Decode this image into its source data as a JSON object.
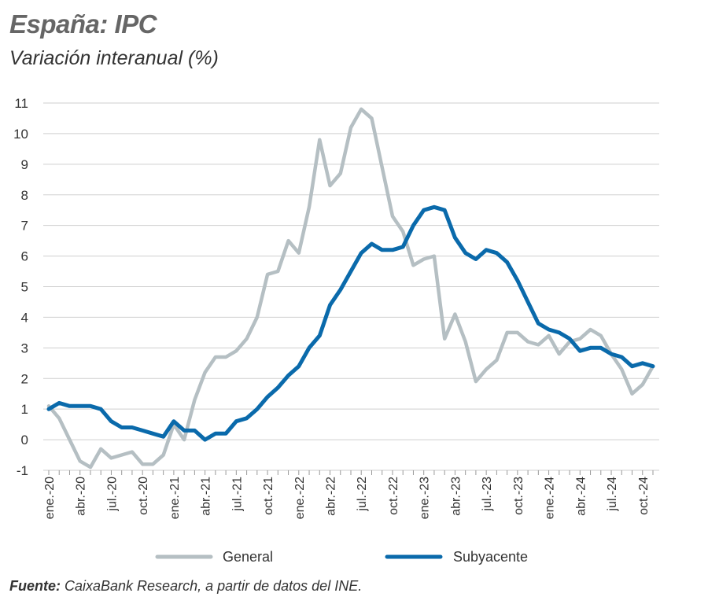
{
  "title": "España: IPC",
  "subtitle": "Variación interanual (%)",
  "source": {
    "label": "Fuente:",
    "text": " CaixaBank Research, a partir de datos del INE."
  },
  "colors": {
    "general": "#b5bfc3",
    "subyacente": "#0a6aab",
    "grid": "#cfcfcf",
    "text": "#333333"
  },
  "chart_data": {
    "type": "line",
    "title": "España: IPC",
    "ylabel": "Variación interanual (%)",
    "xlabel": "",
    "ylim": [
      -1,
      11
    ],
    "yticks": [
      -1,
      0,
      1,
      2,
      3,
      4,
      5,
      6,
      7,
      8,
      9,
      10,
      11
    ],
    "grid": true,
    "legend": "bottom",
    "categories": [
      "ene.-20",
      "feb.-20",
      "mar.-20",
      "abr.-20",
      "may.-20",
      "jun.-20",
      "jul.-20",
      "ago.-20",
      "sep.-20",
      "oct.-20",
      "nov.-20",
      "dic.-20",
      "ene.-21",
      "feb.-21",
      "mar.-21",
      "abr.-21",
      "may.-21",
      "jun.-21",
      "jul.-21",
      "ago.-21",
      "sep.-21",
      "oct.-21",
      "nov.-21",
      "dic.-21",
      "ene.-22",
      "feb.-22",
      "mar.-22",
      "abr.-22",
      "may.-22",
      "jun.-22",
      "jul.-22",
      "ago.-22",
      "sep.-22",
      "oct.-22",
      "nov.-22",
      "dic.-22",
      "ene.-23",
      "feb.-23",
      "mar.-23",
      "abr.-23",
      "may.-23",
      "jun.-23",
      "jul.-23",
      "ago.-23",
      "sep.-23",
      "oct.-23",
      "nov.-23",
      "dic.-23",
      "ene.-24",
      "feb.-24",
      "mar.-24",
      "abr.-24",
      "may.-24",
      "jun.-24",
      "jul.-24",
      "ago.-24",
      "sep.-24",
      "oct.-24",
      "nov.-24"
    ],
    "tick_labels": [
      {
        "index": 0,
        "label": "ene.-20"
      },
      {
        "index": 3,
        "label": "abr.-20"
      },
      {
        "index": 6,
        "label": "jul.-20"
      },
      {
        "index": 9,
        "label": "oct.-20"
      },
      {
        "index": 12,
        "label": "ene.-21"
      },
      {
        "index": 15,
        "label": "abr.-21"
      },
      {
        "index": 18,
        "label": "jul.-21"
      },
      {
        "index": 21,
        "label": "oct.-21"
      },
      {
        "index": 24,
        "label": "ene.-22"
      },
      {
        "index": 27,
        "label": "abr.-22"
      },
      {
        "index": 30,
        "label": "jul.-22"
      },
      {
        "index": 33,
        "label": "oct.-22"
      },
      {
        "index": 36,
        "label": "ene.-23"
      },
      {
        "index": 39,
        "label": "abr.-23"
      },
      {
        "index": 42,
        "label": "jul.-23"
      },
      {
        "index": 45,
        "label": "oct.-23"
      },
      {
        "index": 48,
        "label": "ene.-24"
      },
      {
        "index": 51,
        "label": "abr.-24"
      },
      {
        "index": 54,
        "label": "jul.-24"
      },
      {
        "index": 57,
        "label": "oct.-24"
      }
    ],
    "series": [
      {
        "name": "General",
        "key": "general",
        "values": [
          1.1,
          0.7,
          0.0,
          -0.7,
          -0.9,
          -0.3,
          -0.6,
          -0.5,
          -0.4,
          -0.8,
          -0.8,
          -0.5,
          0.5,
          0.0,
          1.3,
          2.2,
          2.7,
          2.7,
          2.9,
          3.3,
          4.0,
          5.4,
          5.5,
          6.5,
          6.1,
          7.6,
          9.8,
          8.3,
          8.7,
          10.2,
          10.8,
          10.5,
          8.9,
          7.3,
          6.8,
          5.7,
          5.9,
          6.0,
          3.3,
          4.1,
          3.2,
          1.9,
          2.3,
          2.6,
          3.5,
          3.5,
          3.2,
          3.1,
          3.4,
          2.8,
          3.2,
          3.3,
          3.6,
          3.4,
          2.8,
          2.3,
          1.5,
          1.8,
          2.4
        ]
      },
      {
        "name": "Subyacente",
        "key": "subyacente",
        "values": [
          1.0,
          1.2,
          1.1,
          1.1,
          1.1,
          1.0,
          0.6,
          0.4,
          0.4,
          0.3,
          0.2,
          0.1,
          0.6,
          0.3,
          0.3,
          0.0,
          0.2,
          0.2,
          0.6,
          0.7,
          1.0,
          1.4,
          1.7,
          2.1,
          2.4,
          3.0,
          3.4,
          4.4,
          4.9,
          5.5,
          6.1,
          6.4,
          6.2,
          6.2,
          6.3,
          7.0,
          7.5,
          7.6,
          7.5,
          6.6,
          6.1,
          5.9,
          6.2,
          6.1,
          5.8,
          5.2,
          4.5,
          3.8,
          3.6,
          3.5,
          3.3,
          2.9,
          3.0,
          3.0,
          2.8,
          2.7,
          2.4,
          2.5,
          2.4
        ]
      }
    ]
  }
}
